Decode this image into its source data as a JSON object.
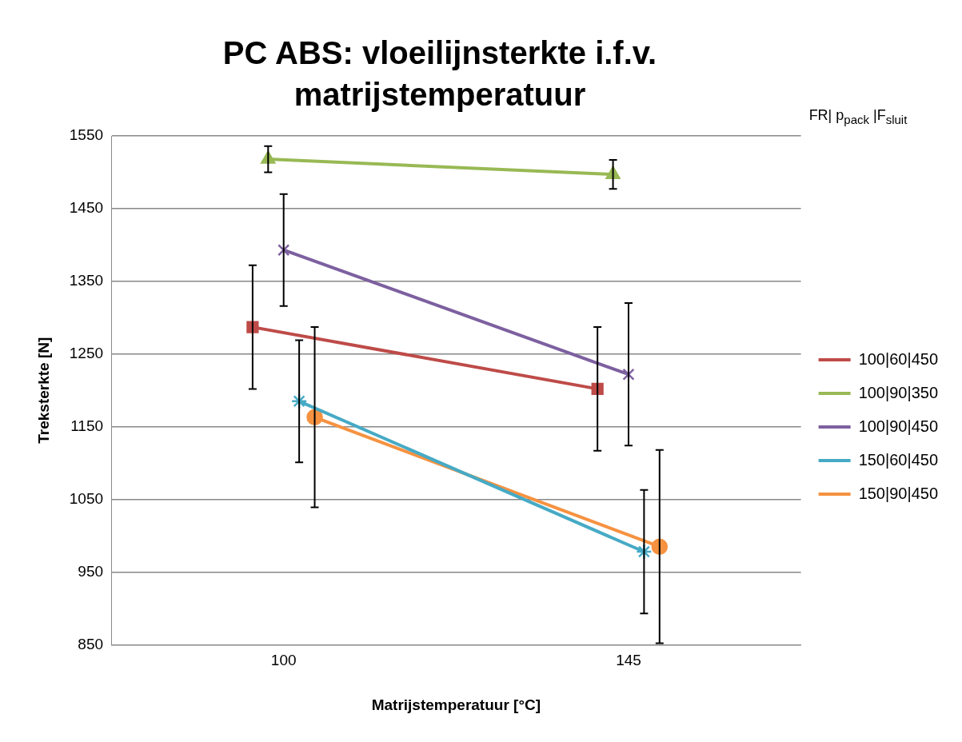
{
  "chart_data": {
    "type": "line",
    "title": "PC ABS: vloeilijnsterkte i.f.v. matrijstemperatuur",
    "xlabel": "Matrijstemperatuur [°C]",
    "ylabel": "Treksterkte [N]",
    "legend_title": "FR| p$_{pack}$ |F$_{sluit}$",
    "categories": [
      "100",
      "145"
    ],
    "ylim": [
      850,
      1550
    ],
    "yticks": [
      850,
      950,
      1050,
      1150,
      1250,
      1350,
      1450,
      1550
    ],
    "grid": "y",
    "legend": "right",
    "series": [
      {
        "name": "100|60|450",
        "color": "#be4b48",
        "marker": "square",
        "values": [
          1287,
          1202
        ],
        "errors": [
          85,
          85
        ]
      },
      {
        "name": "100|90|350",
        "color": "#98b954",
        "marker": "triangle",
        "values": [
          1518,
          1497
        ],
        "errors": [
          18,
          20
        ]
      },
      {
        "name": "100|90|450",
        "color": "#7d60a0",
        "marker": "cross",
        "values": [
          1393,
          1222
        ],
        "errors": [
          77,
          98
        ]
      },
      {
        "name": "150|60|450",
        "color": "#46aac5",
        "marker": "cross",
        "values": [
          1185,
          978
        ],
        "errors": [
          84,
          85
        ]
      },
      {
        "name": "150|90|450",
        "color": "#f69240",
        "marker": "circle",
        "values": [
          1163,
          985
        ],
        "errors": [
          124,
          133
        ]
      }
    ]
  }
}
